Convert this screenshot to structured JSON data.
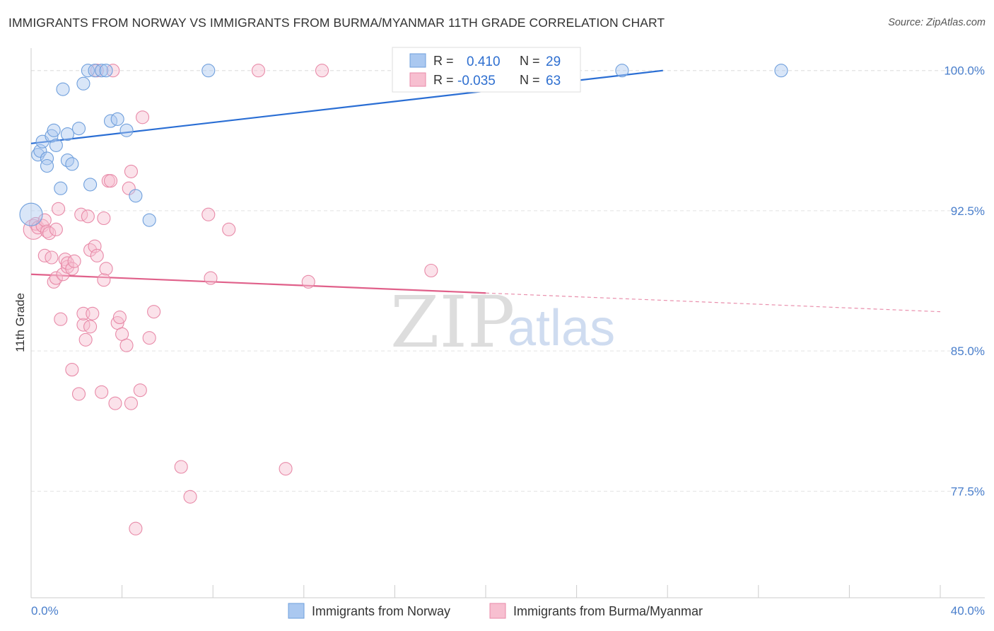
{
  "header": {
    "title": "IMMIGRANTS FROM NORWAY VS IMMIGRANTS FROM BURMA/MYANMAR 11TH GRADE CORRELATION CHART",
    "source": "Source: ZipAtlas.com"
  },
  "watermark": {
    "zip": "ZIP",
    "atlas": "atlas"
  },
  "stats": {
    "norway": {
      "r_label": "R =",
      "r_value": "0.410",
      "n_label": "N =",
      "n_value": "29"
    },
    "burma": {
      "r_label": "R =",
      "r_value": "-0.035",
      "n_label": "N =",
      "n_value": "63"
    }
  },
  "chart_data": {
    "type": "scatter",
    "title": "IMMIGRANTS FROM NORWAY VS IMMIGRANTS FROM BURMA/MYANMAR 11TH GRADE CORRELATION CHART",
    "xlabel": "",
    "ylabel": "11th Grade",
    "xlim": [
      0,
      40
    ],
    "ylim": [
      71.8,
      101.2
    ],
    "x_tick_labels": [
      "0.0%",
      "40.0%"
    ],
    "y_ticks": [
      77.5,
      85.0,
      92.5,
      100.0
    ],
    "y_tick_labels": [
      "77.5%",
      "85.0%",
      "92.5%",
      "100.0%"
    ],
    "legend_position": "bottom",
    "colors": {
      "norway_fill": "#aac8f0",
      "norway_stroke": "#6f9fdc",
      "norway_line": "#2a6ed4",
      "burma_fill": "#f7bfd0",
      "burma_stroke": "#e88aa8",
      "burma_line": "#e0608a"
    },
    "series": [
      {
        "name": "Immigrants from Norway",
        "color": "#6f9fdc",
        "trend": {
          "x": [
            0,
            27.8
          ],
          "y": [
            96.1,
            100.0
          ],
          "solid_to_x": 27.8
        },
        "points": [
          [
            0.0,
            92.3,
            16
          ],
          [
            0.3,
            95.5,
            9
          ],
          [
            0.4,
            95.7,
            9
          ],
          [
            0.5,
            96.2,
            9
          ],
          [
            0.7,
            95.3,
            9
          ],
          [
            0.7,
            94.9,
            9
          ],
          [
            0.9,
            96.5,
            9
          ],
          [
            1.0,
            96.8,
            9
          ],
          [
            1.1,
            96.0,
            9
          ],
          [
            1.3,
            93.7,
            9
          ],
          [
            1.4,
            99.0,
            9
          ],
          [
            1.6,
            96.6,
            9
          ],
          [
            1.6,
            95.2,
            9
          ],
          [
            1.8,
            95.0,
            9
          ],
          [
            2.1,
            96.9,
            9
          ],
          [
            2.3,
            99.3,
            9
          ],
          [
            2.5,
            100.0,
            9
          ],
          [
            2.6,
            93.9,
            9
          ],
          [
            2.8,
            100.0,
            9
          ],
          [
            3.1,
            100.0,
            9
          ],
          [
            3.3,
            100.0,
            9
          ],
          [
            3.5,
            97.3,
            9
          ],
          [
            3.8,
            97.4,
            9
          ],
          [
            4.2,
            96.8,
            9
          ],
          [
            4.6,
            93.3,
            9
          ],
          [
            5.2,
            92.0,
            9
          ],
          [
            7.8,
            100.0,
            9
          ],
          [
            26.0,
            100.0,
            9
          ],
          [
            33.0,
            100.0,
            9
          ]
        ]
      },
      {
        "name": "Immigrants from Burma/Myanmar",
        "color": "#e88aa8",
        "trend": {
          "x": [
            0,
            40
          ],
          "y": [
            89.1,
            87.1
          ],
          "solid_to_x": 20.0
        },
        "points": [
          [
            0.1,
            91.5,
            14
          ],
          [
            0.2,
            91.8,
            9
          ],
          [
            0.3,
            91.6,
            9
          ],
          [
            0.5,
            91.7,
            9
          ],
          [
            0.6,
            92.0,
            9
          ],
          [
            0.7,
            91.4,
            9
          ],
          [
            0.8,
            91.3,
            9
          ],
          [
            0.6,
            90.1,
            9
          ],
          [
            0.9,
            90.0,
            9
          ],
          [
            1.0,
            88.7,
            9
          ],
          [
            1.1,
            88.9,
            9
          ],
          [
            1.1,
            91.5,
            9
          ],
          [
            1.2,
            92.6,
            9
          ],
          [
            1.3,
            86.7,
            9
          ],
          [
            1.4,
            89.1,
            9
          ],
          [
            1.5,
            89.9,
            9
          ],
          [
            1.6,
            89.5,
            9
          ],
          [
            1.6,
            89.7,
            9
          ],
          [
            1.8,
            89.4,
            9
          ],
          [
            1.9,
            89.8,
            9
          ],
          [
            1.8,
            84.0,
            9
          ],
          [
            2.1,
            82.7,
            9
          ],
          [
            2.2,
            92.3,
            9
          ],
          [
            2.3,
            86.4,
            9
          ],
          [
            2.3,
            87.0,
            9
          ],
          [
            2.4,
            85.6,
            9
          ],
          [
            2.5,
            92.2,
            9
          ],
          [
            2.6,
            86.3,
            9
          ],
          [
            2.6,
            90.4,
            9
          ],
          [
            2.7,
            87.0,
            9
          ],
          [
            2.8,
            90.6,
            9
          ],
          [
            2.9,
            90.1,
            9
          ],
          [
            3.1,
            82.8,
            9
          ],
          [
            3.2,
            88.8,
            9
          ],
          [
            3.2,
            92.1,
            9
          ],
          [
            3.3,
            89.4,
            9
          ],
          [
            3.4,
            94.1,
            9
          ],
          [
            3.5,
            94.1,
            9
          ],
          [
            3.7,
            82.2,
            9
          ],
          [
            3.8,
            86.5,
            9
          ],
          [
            3.9,
            86.8,
            9
          ],
          [
            4.0,
            85.9,
            9
          ],
          [
            4.2,
            85.3,
            9
          ],
          [
            4.3,
            93.7,
            9
          ],
          [
            4.4,
            94.6,
            9
          ],
          [
            4.4,
            82.2,
            9
          ],
          [
            4.8,
            82.9,
            9
          ],
          [
            4.9,
            97.5,
            9
          ],
          [
            5.2,
            85.7,
            9
          ],
          [
            5.4,
            87.1,
            9
          ],
          [
            6.6,
            78.8,
            9
          ],
          [
            7.0,
            77.2,
            9
          ],
          [
            4.6,
            75.5,
            9
          ],
          [
            7.8,
            92.3,
            9
          ],
          [
            7.9,
            88.9,
            9
          ],
          [
            8.7,
            91.5,
            9
          ],
          [
            10.0,
            100.0,
            9
          ],
          [
            11.2,
            78.7,
            9
          ],
          [
            12.2,
            88.7,
            9
          ],
          [
            12.8,
            100.0,
            9
          ],
          [
            17.6,
            89.3,
            9
          ],
          [
            3.6,
            100.0,
            9
          ],
          [
            2.9,
            100.0,
            9
          ]
        ]
      }
    ]
  }
}
